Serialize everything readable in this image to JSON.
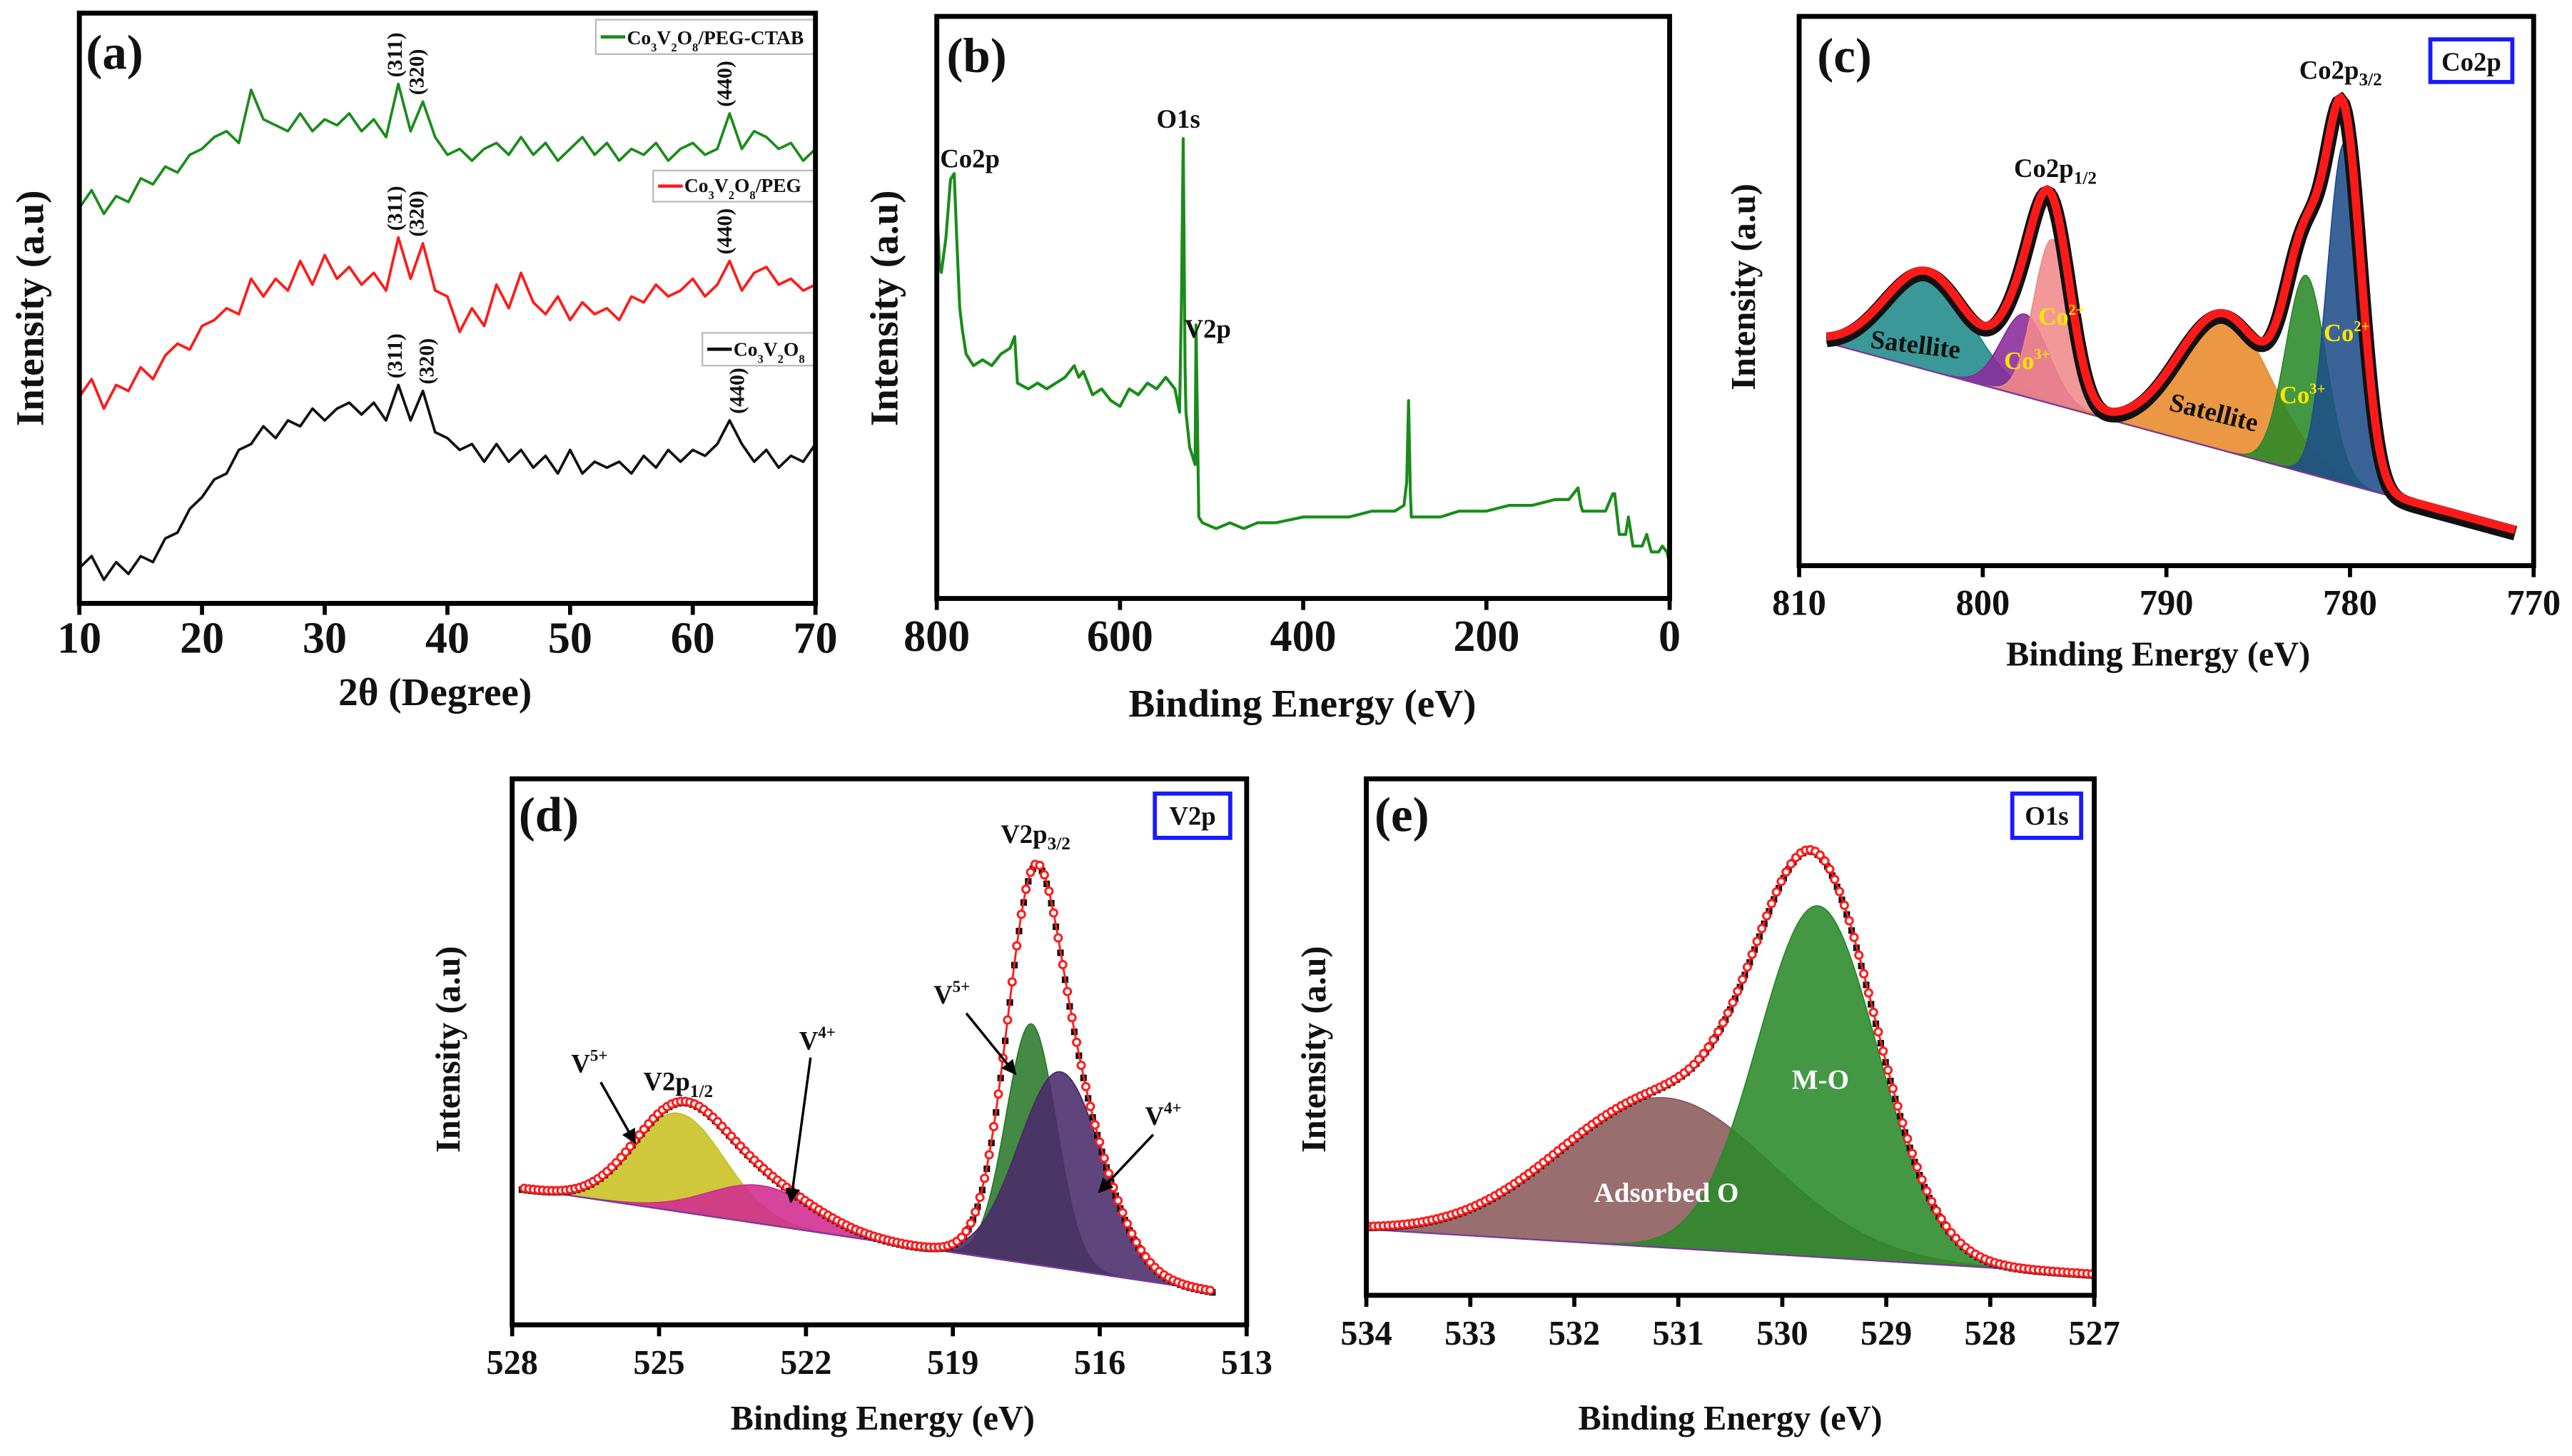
{
  "figure_labels": {
    "a": "(a)",
    "b": "(b)",
    "c": "(c)",
    "d": "(d)",
    "e": "(e)"
  },
  "chart_data": [
    {
      "panel": "a",
      "type": "line",
      "xlabel": "2θ (Degree)",
      "ylabel": "Intensity (a.u)",
      "xlim": [
        10,
        70
      ],
      "ylim": [
        0,
        100
      ],
      "xticks": [
        10,
        20,
        30,
        40,
        50,
        60,
        70
      ],
      "grid": false,
      "legend_placement": "top-right, beside each curve",
      "x": [
        10,
        11,
        12,
        13,
        14,
        15,
        16,
        17,
        18,
        19,
        20,
        21,
        22,
        23,
        24,
        25,
        26,
        27,
        28,
        29,
        30,
        31,
        32,
        33,
        34,
        35,
        36,
        37,
        38,
        39,
        40,
        41,
        42,
        43,
        44,
        45,
        46,
        47,
        48,
        49,
        50,
        51,
        52,
        53,
        54,
        55,
        56,
        57,
        58,
        59,
        60,
        61,
        62,
        63,
        64,
        65,
        66,
        67,
        68,
        69,
        70
      ],
      "series": [
        {
          "name": "Co3V2O8/PEG-CTAB",
          "color": "#1a8c1a",
          "values": [
            67,
            70,
            66,
            69,
            68,
            72,
            71,
            74,
            73,
            76,
            77,
            79,
            80,
            78,
            87,
            82,
            81,
            80,
            83,
            80,
            82,
            81,
            83,
            80,
            82,
            79,
            88,
            80,
            85,
            79,
            76,
            77,
            75,
            77,
            78,
            76,
            79,
            76,
            78,
            75,
            77,
            79,
            76,
            78,
            75,
            77,
            76,
            78,
            75,
            77,
            78,
            76,
            77,
            83,
            77,
            80,
            79,
            77,
            78,
            75,
            77
          ],
          "peaks": [
            {
              "label": "(311)",
              "x": 35.6
            },
            {
              "label": "(320)",
              "x": 37.4
            },
            {
              "label": "(440)",
              "x": 62.5
            }
          ]
        },
        {
          "name": "Co3V2O8/PEG",
          "color": "#ff1a1a",
          "values": [
            35,
            38,
            33,
            37,
            36,
            40,
            38,
            42,
            44,
            43,
            47,
            48,
            50,
            49,
            55,
            52,
            55,
            53,
            58,
            54,
            59,
            55,
            57,
            54,
            56,
            53,
            62,
            55,
            61,
            53,
            52,
            46,
            50,
            47,
            54,
            50,
            56,
            51,
            49,
            52,
            48,
            51,
            49,
            50,
            48,
            52,
            51,
            54,
            52,
            53,
            55,
            52,
            54,
            58,
            53,
            56,
            57,
            54,
            55,
            53,
            54
          ],
          "peaks": [
            {
              "label": "(311)",
              "x": 35.6
            },
            {
              "label": "(320)",
              "x": 37.4
            },
            {
              "label": "(440)",
              "x": 62.5
            }
          ]
        },
        {
          "name": "Co3V2O8",
          "color": "#111111",
          "values": [
            6,
            8,
            4,
            7,
            5,
            8,
            7,
            11,
            12,
            16,
            18,
            21,
            22,
            26,
            27,
            30,
            28,
            31,
            30,
            33,
            31,
            33,
            34,
            32,
            34,
            31,
            37,
            31,
            36,
            29,
            28,
            26,
            27,
            24,
            27,
            24,
            26,
            23,
            25,
            22,
            26,
            22,
            24,
            23,
            24,
            22,
            25,
            23,
            26,
            24,
            26,
            25,
            27,
            31,
            27,
            24,
            26,
            23,
            25,
            24,
            27
          ],
          "peaks": [
            {
              "label": "(311)",
              "x": 35.6
            },
            {
              "label": "(320)",
              "x": 38.2
            },
            {
              "label": "(440)",
              "x": 63.5
            }
          ]
        }
      ]
    },
    {
      "panel": "b",
      "type": "line",
      "xlabel": "Binding Energy (eV)",
      "ylabel": "Intensity (a.u)",
      "xlim": [
        800,
        0
      ],
      "ylim": [
        0,
        100
      ],
      "xticks": [
        800,
        600,
        400,
        200,
        0
      ],
      "grid": false,
      "color": "#1a8c1a",
      "points": [
        [
          800,
          68
        ],
        [
          797,
          57
        ],
        [
          795,
          56
        ],
        [
          790,
          62
        ],
        [
          785,
          72
        ],
        [
          781,
          73
        ],
        [
          778,
          61
        ],
        [
          775,
          50
        ],
        [
          772,
          46
        ],
        [
          768,
          42
        ],
        [
          760,
          40
        ],
        [
          750,
          41
        ],
        [
          740,
          40
        ],
        [
          730,
          42
        ],
        [
          720,
          43
        ],
        [
          715,
          45
        ],
        [
          712,
          37
        ],
        [
          700,
          36
        ],
        [
          690,
          37
        ],
        [
          680,
          36
        ],
        [
          670,
          37
        ],
        [
          660,
          38
        ],
        [
          650,
          40
        ],
        [
          645,
          38
        ],
        [
          640,
          39
        ],
        [
          630,
          35
        ],
        [
          620,
          36
        ],
        [
          610,
          34
        ],
        [
          600,
          33
        ],
        [
          590,
          36
        ],
        [
          580,
          35
        ],
        [
          570,
          37
        ],
        [
          560,
          36
        ],
        [
          550,
          38
        ],
        [
          540,
          36
        ],
        [
          535,
          32
        ],
        [
          533,
          50
        ],
        [
          531,
          79
        ],
        [
          529,
          40
        ],
        [
          528,
          32
        ],
        [
          524,
          26
        ],
        [
          522,
          25
        ],
        [
          518,
          23
        ],
        [
          517,
          47
        ],
        [
          514,
          14
        ],
        [
          510,
          13
        ],
        [
          495,
          12
        ],
        [
          480,
          13
        ],
        [
          465,
          12
        ],
        [
          450,
          13
        ],
        [
          430,
          13
        ],
        [
          400,
          14
        ],
        [
          375,
          14
        ],
        [
          350,
          14
        ],
        [
          325,
          15
        ],
        [
          300,
          15
        ],
        [
          290,
          16
        ],
        [
          287,
          20
        ],
        [
          285,
          34
        ],
        [
          283,
          18
        ],
        [
          282,
          14
        ],
        [
          265,
          14
        ],
        [
          250,
          14
        ],
        [
          230,
          15
        ],
        [
          200,
          15
        ],
        [
          175,
          16
        ],
        [
          150,
          16
        ],
        [
          125,
          17
        ],
        [
          110,
          17
        ],
        [
          100,
          19
        ],
        [
          97,
          16
        ],
        [
          95,
          15
        ],
        [
          80,
          15
        ],
        [
          70,
          15
        ],
        [
          62,
          18
        ],
        [
          60,
          18
        ],
        [
          55,
          11
        ],
        [
          48,
          11
        ],
        [
          45,
          14
        ],
        [
          40,
          9
        ],
        [
          30,
          9
        ],
        [
          25,
          11
        ],
        [
          20,
          8
        ],
        [
          12,
          8
        ],
        [
          8,
          9
        ],
        [
          3,
          8
        ],
        [
          0,
          6
        ]
      ],
      "annotations": [
        "Co2p",
        "O1s",
        "V2p"
      ]
    },
    {
      "panel": "c",
      "type": "area",
      "box_label": "Co2p",
      "xlabel": "Binding Energy (eV)",
      "ylabel": "Intensity (a.u)",
      "xlim": [
        810,
        770
      ],
      "ylim": [
        0,
        100
      ],
      "xticks": [
        810,
        800,
        790,
        780,
        770
      ],
      "grid": false,
      "data_range": [
        808.5,
        771
      ],
      "baseline": [
        [
          808.5,
          40.6
        ],
        [
          771,
          6.5
        ]
      ],
      "envelope_color": "#ff1a1a",
      "data_color": "#111111",
      "components": [
        {
          "label": "Satellite",
          "center": 803.0,
          "height": 18,
          "fwhm": 5.5,
          "color": "#1f8a8a"
        },
        {
          "label": "Co3+",
          "center": 797.7,
          "height": 15,
          "fwhm": 3.0,
          "color": "#8a2a9a"
        },
        {
          "label": "Co2+",
          "center": 796.2,
          "height": 30,
          "fwhm": 2.4,
          "color": "#f08a8a"
        },
        {
          "label": "Satellite",
          "center": 786.8,
          "height": 25,
          "fwhm": 6.0,
          "color": "#e8892a"
        },
        {
          "label": "Co3+",
          "center": 782.4,
          "height": 36,
          "fwhm": 2.6,
          "color": "#2a8a2a"
        },
        {
          "label": "Co2+",
          "center": 780.3,
          "height": 62,
          "fwhm": 2.2,
          "color": "#1f4f8a"
        }
      ],
      "peak_labels": [
        {
          "text": "Co2p",
          "sub": "1/2"
        },
        {
          "text": "Co2p",
          "sub": "3/2"
        }
      ],
      "state_labels": [
        {
          "text": "Co",
          "sup": "3+"
        },
        {
          "text": "Co",
          "sup": "2+"
        },
        {
          "text": "Co",
          "sup": "3+"
        },
        {
          "text": "Co",
          "sup": "2+"
        }
      ],
      "satellite_label": "Satellite"
    },
    {
      "panel": "d",
      "type": "area",
      "box_label": "V2p",
      "xlabel": "Binding Energy (eV)",
      "ylabel": "Intensity (a.u)",
      "xlim": [
        528,
        513
      ],
      "ylim": [
        0,
        100
      ],
      "xticks": [
        528,
        525,
        522,
        519,
        516,
        513
      ],
      "grid": false,
      "data_range": [
        527.8,
        513.7
      ],
      "baseline": [
        [
          527.8,
          25
        ],
        [
          513.7,
          6.2
        ]
      ],
      "envelope_color": "#ff1a1a",
      "data_color": "#111111",
      "components": [
        {
          "label": "V5+",
          "center": 524.6,
          "height": 18,
          "fwhm": 2.2,
          "color": "#c8c020"
        },
        {
          "label": "V4+",
          "center": 522.9,
          "height": 7,
          "fwhm": 2.6,
          "color": "#d02a90"
        },
        {
          "label": "V5+",
          "center": 517.4,
          "height": 44,
          "fwhm": 1.2,
          "color": "#2a7a2a"
        },
        {
          "label": "V4+",
          "center": 516.8,
          "height": 36,
          "fwhm": 2.0,
          "color": "#4a2a6a"
        }
      ],
      "peak_labels": [
        {
          "text": "V2p",
          "sub": "1/2"
        },
        {
          "text": "V2p",
          "sub": "3/2"
        }
      ],
      "state_labels": [
        {
          "text": "V",
          "sup": "5+"
        },
        {
          "text": "V",
          "sup": "4+"
        },
        {
          "text": "V",
          "sup": "5+"
        },
        {
          "text": "V",
          "sup": "4+"
        }
      ]
    },
    {
      "panel": "e",
      "type": "area",
      "box_label": "O1s",
      "xlabel": "Binding Energy (eV)",
      "ylabel": "Intensity (a.u)",
      "xlim": [
        534,
        527
      ],
      "ylim": [
        0,
        100
      ],
      "xticks": [
        534,
        533,
        532,
        531,
        530,
        529,
        528,
        527
      ],
      "grid": false,
      "data_range": [
        534,
        527
      ],
      "baseline": [
        [
          534,
          12.8
        ],
        [
          527,
          4.1
        ]
      ],
      "envelope_color": "#ff1a1a",
      "data_color": "#111111",
      "components": [
        {
          "label": "Adsorbed O",
          "center": 531.13,
          "height": 29,
          "fwhm": 2.4,
          "color": "#8a5a5a"
        },
        {
          "label": "M-O",
          "center": 529.66,
          "height": 68,
          "fwhm": 1.35,
          "color": "#2a8a2a"
        }
      ]
    }
  ]
}
